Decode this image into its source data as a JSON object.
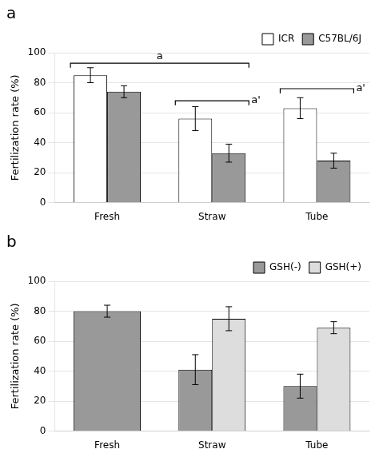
{
  "chart_data": [
    {
      "type": "bar",
      "title": "a",
      "categories": [
        "Fresh",
        "Straw",
        "Tube"
      ],
      "series": [
        {
          "name": "ICR",
          "color": "#ffffff",
          "values": [
            85,
            56,
            63
          ],
          "errors": [
            5,
            8,
            7
          ]
        },
        {
          "name": "C57BL/6J",
          "color": "#999999",
          "values": [
            74,
            33,
            28
          ],
          "errors": [
            4,
            6,
            5
          ]
        }
      ],
      "ylabel": "Fertilization rate (%)",
      "ylim": [
        0,
        100
      ],
      "yticks": [
        0,
        20,
        40,
        60,
        80,
        100
      ],
      "grid": true,
      "legend": "upper right",
      "annotations": [
        {
          "text": "a",
          "y": 93,
          "categories": [
            "Fresh",
            "Straw"
          ]
        },
        {
          "text": "a'",
          "y": 68,
          "categories": [
            "Straw"
          ]
        },
        {
          "text": "a'",
          "y": 76,
          "categories": [
            "Tube"
          ]
        }
      ]
    },
    {
      "type": "bar",
      "title": "b",
      "categories": [
        "Fresh",
        "Straw",
        "Tube"
      ],
      "series": [
        {
          "name": "GSH(-)",
          "color": "#999999",
          "values": [
            80,
            41,
            30
          ],
          "errors": [
            4,
            10,
            8
          ]
        },
        {
          "name": "GSH(+)",
          "color": "#dddddd",
          "values": [
            null,
            75,
            69
          ],
          "errors": [
            null,
            8,
            4
          ]
        }
      ],
      "ylabel": "Fertilization rate (%)",
      "ylim": [
        0,
        100
      ],
      "yticks": [
        0,
        20,
        40,
        60,
        80,
        100
      ],
      "grid": true,
      "legend": "upper right"
    }
  ]
}
